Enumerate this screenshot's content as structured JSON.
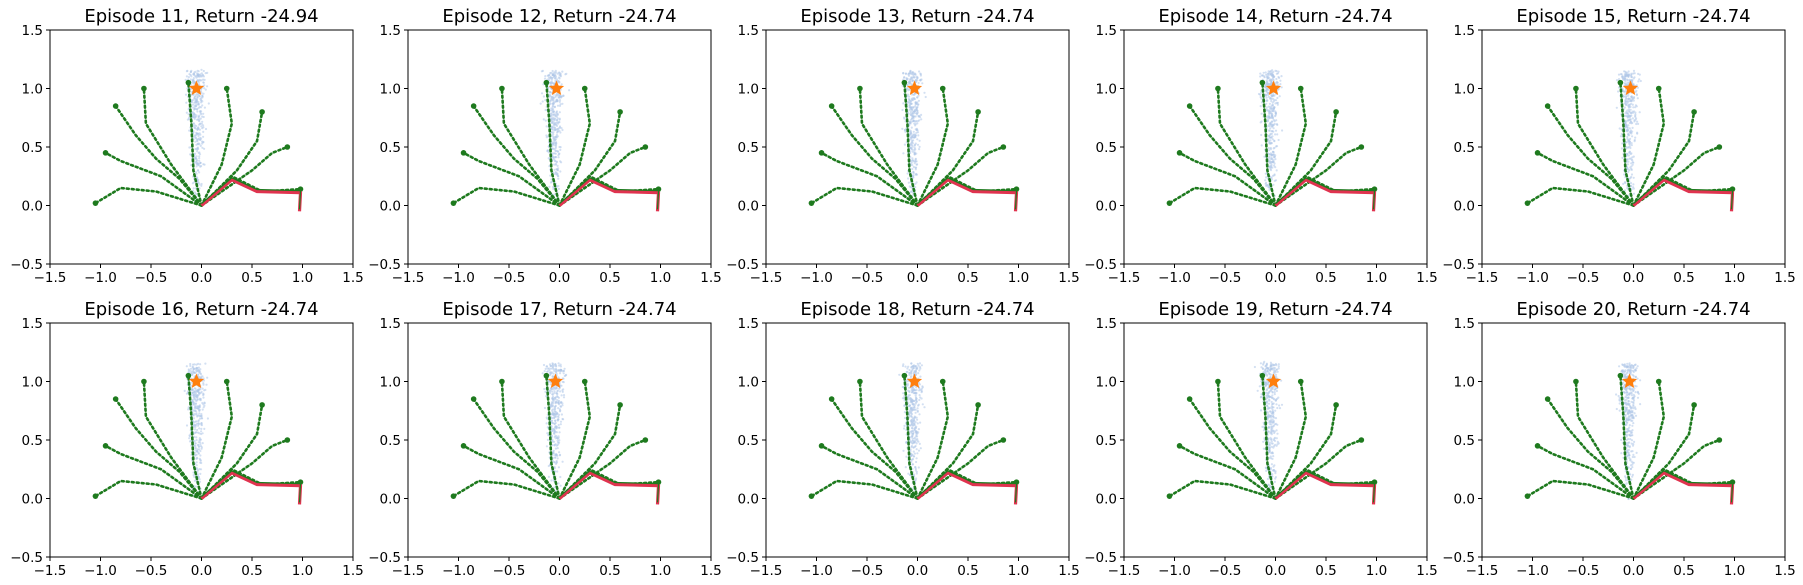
{
  "chart_data": {
    "type": "scatter",
    "panels": [
      {
        "title": "Episode 11, Return -24.94",
        "star_x": -0.05
      },
      {
        "title": "Episode 12, Return -24.74",
        "star_x": -0.03
      },
      {
        "title": "Episode 13, Return -24.74",
        "star_x": -0.03
      },
      {
        "title": "Episode 14, Return -24.74",
        "star_x": -0.02
      },
      {
        "title": "Episode 15, Return -24.74",
        "star_x": -0.03
      },
      {
        "title": "Episode 16, Return -24.74",
        "star_x": -0.05
      },
      {
        "title": "Episode 17, Return -24.74",
        "star_x": -0.04
      },
      {
        "title": "Episode 18, Return -24.74",
        "star_x": -0.03
      },
      {
        "title": "Episode 19, Return -24.74",
        "star_x": -0.02
      },
      {
        "title": "Episode 20, Return -24.74",
        "star_x": -0.04
      }
    ],
    "xlim": [
      -1.5,
      1.5
    ],
    "ylim": [
      -0.5,
      1.5
    ],
    "xticks": [
      "−1.5",
      "−1.0",
      "−0.5",
      "0.0",
      "0.5",
      "1.0",
      "1.5"
    ],
    "yticks": [
      "−0.5",
      "0.0",
      "0.5",
      "1.0",
      "1.5"
    ],
    "xtick_values": [
      -1.5,
      -1.0,
      -0.5,
      0.0,
      0.5,
      1.0,
      1.5
    ],
    "ytick_values": [
      -0.5,
      0.0,
      0.5,
      1.0,
      1.5
    ],
    "goal": {
      "x": -0.05,
      "y": 1.0,
      "marker": "star",
      "color": "#ff7f0e"
    },
    "scatter_cloud": {
      "x_center": -0.05,
      "y_range": [
        0.0,
        1.15
      ],
      "color": "#aec7e8"
    },
    "green_trajectories": [
      [
        [
          0,
          0
        ],
        [
          -0.22,
          0.23
        ],
        [
          -0.45,
          0.4
        ],
        [
          -0.65,
          0.6
        ],
        [
          -0.85,
          0.85
        ]
      ],
      [
        [
          0,
          0
        ],
        [
          -0.4,
          0.25
        ],
        [
          -0.8,
          0.38
        ],
        [
          -0.95,
          0.45
        ]
      ],
      [
        [
          0,
          0
        ],
        [
          -0.45,
          0.12
        ],
        [
          -0.8,
          0.15
        ],
        [
          -1.05,
          0.02
        ]
      ],
      [
        [
          0,
          0
        ],
        [
          -0.3,
          0.35
        ],
        [
          -0.55,
          0.7
        ],
        [
          -0.57,
          1.0
        ]
      ],
      [
        [
          0,
          0
        ],
        [
          -0.08,
          0.3
        ],
        [
          -0.1,
          0.7
        ],
        [
          -0.13,
          1.05
        ]
      ],
      [
        [
          0,
          0
        ],
        [
          0.2,
          0.35
        ],
        [
          0.3,
          0.7
        ],
        [
          0.25,
          1.0
        ]
      ],
      [
        [
          0,
          0
        ],
        [
          0.35,
          0.3
        ],
        [
          0.55,
          0.55
        ],
        [
          0.6,
          0.8
        ]
      ],
      [
        [
          0,
          0
        ],
        [
          0.5,
          0.3
        ],
        [
          0.7,
          0.45
        ],
        [
          0.85,
          0.5
        ]
      ],
      [
        [
          0,
          0
        ],
        [
          0.3,
          0.25
        ],
        [
          0.6,
          0.12
        ],
        [
          0.98,
          0.14
        ]
      ]
    ],
    "red_trajectory": [
      [
        0,
        0
      ],
      [
        0.3,
        0.22
      ],
      [
        0.55,
        0.12
      ],
      [
        0.98,
        0.11
      ],
      [
        0.97,
        -0.05
      ]
    ],
    "colors": {
      "green": "#1e7a1e",
      "red": "#e0334f",
      "blue": "#aec7e8",
      "orange": "#ff7f0e"
    }
  }
}
